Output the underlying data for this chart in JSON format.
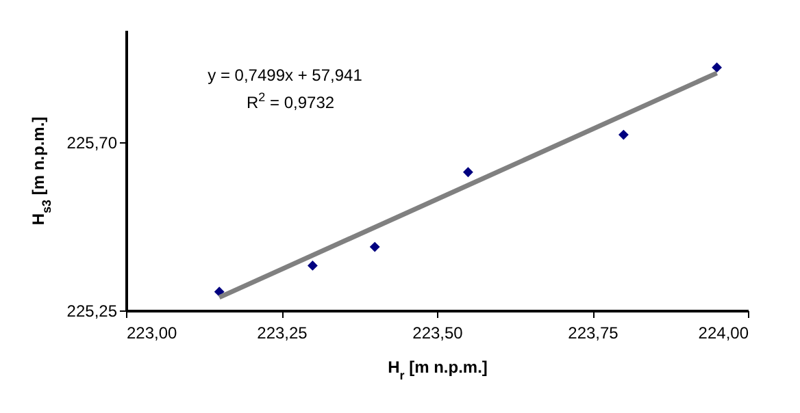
{
  "chart_data": {
    "type": "scatter",
    "xlabel": "H$_{r}$ [m n.p.m.]",
    "ylabel": "H$_{s3}$ [m n.p.m.]",
    "annotations": [
      "y = 0,7499x + 57,941",
      "R$^{2}$ = 0,9732"
    ],
    "xlim": [
      223.0,
      224.0
    ],
    "xticks": [
      {
        "value": 223.0,
        "label": "223,00"
      },
      {
        "value": 223.25,
        "label": "223,25"
      },
      {
        "value": 223.5,
        "label": "223,50"
      },
      {
        "value": 223.75,
        "label": "223,75"
      },
      {
        "value": 224.0,
        "label": "224,00"
      }
    ],
    "ylim": [
      225.25,
      226.0
    ],
    "yticks": [
      {
        "value": 225.25,
        "label": "225,25"
      },
      {
        "value": 225.7,
        "label": "225,70"
      }
    ],
    "grid": false,
    "marker": "diamond",
    "x": [
      223.15,
      223.3,
      223.4,
      223.55,
      223.8,
      223.95
    ],
    "series": [
      {
        "color": "#000080",
        "values": [
          225.3,
          225.37,
          225.42,
          225.62,
          225.72,
          225.9
        ]
      },
      {
        "type": "line",
        "marker": "none",
        "color": "#808080",
        "x": [
          223.15,
          223.95
        ],
        "values": [
          225.285,
          225.885
        ]
      }
    ]
  }
}
